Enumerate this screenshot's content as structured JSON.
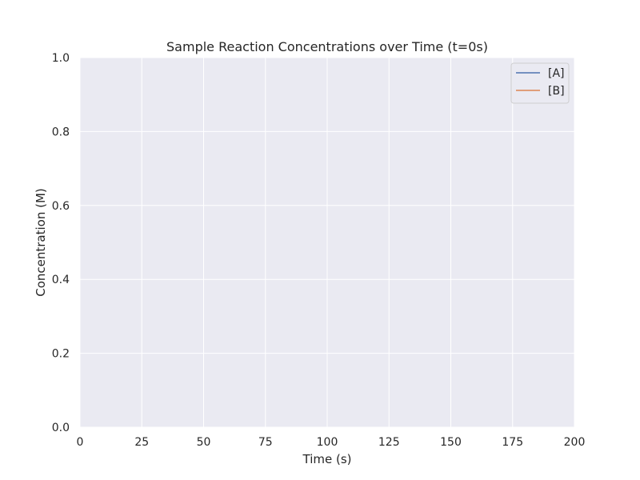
{
  "chart_data": {
    "type": "line",
    "title": "Sample Reaction Concentrations over Time (t=0s)",
    "xlabel": "Time (s)",
    "ylabel": "Concentration (M)",
    "xlim": [
      0,
      200
    ],
    "ylim": [
      0,
      1
    ],
    "xticks": [
      0,
      25,
      50,
      75,
      100,
      125,
      150,
      175,
      200
    ],
    "yticks": [
      0.0,
      0.2,
      0.4,
      0.6,
      0.8,
      1.0
    ],
    "xtick_labels": [
      "0",
      "25",
      "50",
      "75",
      "100",
      "125",
      "150",
      "175",
      "200"
    ],
    "ytick_labels": [
      "0.0",
      "0.2",
      "0.4",
      "0.6",
      "0.8",
      "1.0"
    ],
    "grid": true,
    "legend_position": "top-right",
    "series": [
      {
        "name": "[A]",
        "color": "#4c72b0",
        "x": [],
        "y": []
      },
      {
        "name": "[B]",
        "color": "#dd8452",
        "x": [],
        "y": []
      }
    ]
  },
  "colors": {
    "plot_background": "#eaeaf2",
    "grid": "#ffffff",
    "text": "#262626"
  }
}
